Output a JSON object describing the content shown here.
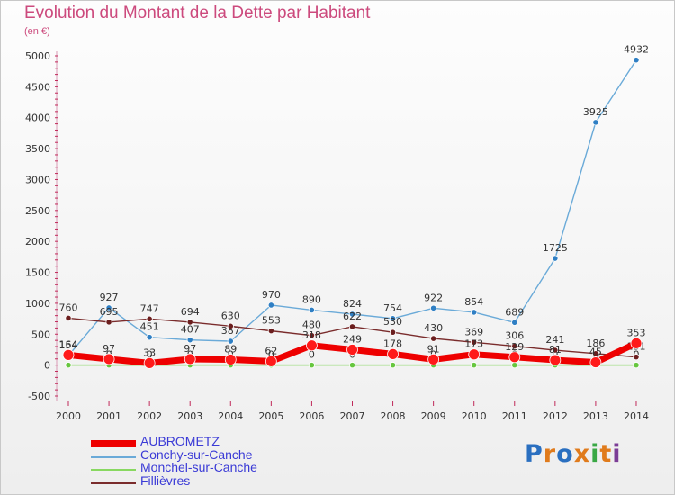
{
  "chart_data": {
    "type": "line",
    "title": "Evolution du Montant de la Dette par Habitant",
    "subtitle": "(en €)",
    "categories": [
      "2000",
      "2001",
      "2002",
      "2003",
      "2004",
      "2005",
      "2006",
      "2007",
      "2008",
      "2009",
      "2010",
      "2011",
      "2012",
      "2013",
      "2014"
    ],
    "ylim": [
      -500,
      5000
    ],
    "yticks": [
      -500,
      0,
      500,
      1000,
      1500,
      2000,
      2500,
      3000,
      3500,
      4000,
      4500,
      5000
    ],
    "grid": false,
    "legend_position": "bottom-left",
    "series": [
      {
        "name": "Conchy-sur-Canche",
        "color": "#6aaad8",
        "marker": "#2f7fc4",
        "values": [
          154,
          927,
          451,
          407,
          387,
          970,
          890,
          824,
          754,
          922,
          854,
          689,
          1725,
          3925,
          4932
        ],
        "labels": [
          "154",
          "927",
          "451",
          "407",
          "387",
          "970",
          "890",
          "824",
          "754",
          "922",
          "854",
          "689",
          "1725",
          "3925",
          "4932"
        ]
      },
      {
        "name": "Monchel-sur-Canche",
        "color": "#88d860",
        "marker": "#66c63e",
        "values": [
          0,
          0,
          0,
          0,
          0,
          0,
          0,
          0,
          0,
          0,
          0,
          0,
          0,
          0,
          0
        ],
        "labels": [
          "0",
          "0",
          "0",
          "0",
          "0",
          "0",
          "0",
          "0",
          "0",
          "0",
          "0",
          "0",
          "0",
          "0",
          "0"
        ]
      },
      {
        "name": "Fillièvres",
        "color": "#7a2c2c",
        "marker": "#6b1e1e",
        "values": [
          760,
          695,
          747,
          694,
          630,
          553,
          480,
          622,
          530,
          430,
          369,
          306,
          241,
          186,
          131
        ],
        "labels": [
          "760",
          "695",
          "747",
          "694",
          "630",
          "553",
          "480",
          "622",
          "530",
          "430",
          "369",
          "306",
          "241",
          "186",
          "131"
        ]
      },
      {
        "name": "AUBROMETZ",
        "color": "#ee0000",
        "marker": "#ff1a1a",
        "values": [
          164,
          97,
          33,
          97,
          89,
          62,
          318,
          249,
          178,
          91,
          173,
          129,
          81,
          45,
          353
        ],
        "labels": [
          "164",
          "97",
          "33",
          "97",
          "89",
          "62",
          "318",
          "249",
          "178",
          "91",
          "173",
          "129",
          "81",
          "45",
          "353"
        ]
      }
    ]
  },
  "legend": {
    "items": [
      {
        "label": "AUBROMETZ",
        "color": "#ee0000"
      },
      {
        "label": "Conchy-sur-Canche",
        "color": "#6aaad8"
      },
      {
        "label": "Monchel-sur-Canche",
        "color": "#88d860"
      },
      {
        "label": "Fillièvres",
        "color": "#7a2c2c"
      }
    ]
  },
  "logo": {
    "text": "Proxiti",
    "colors": [
      "#2a6fc0",
      "#e07b1c",
      "#2a6fc0",
      "#e07b1c",
      "#3aa845",
      "#e07b1c",
      "#7c3d96"
    ]
  }
}
